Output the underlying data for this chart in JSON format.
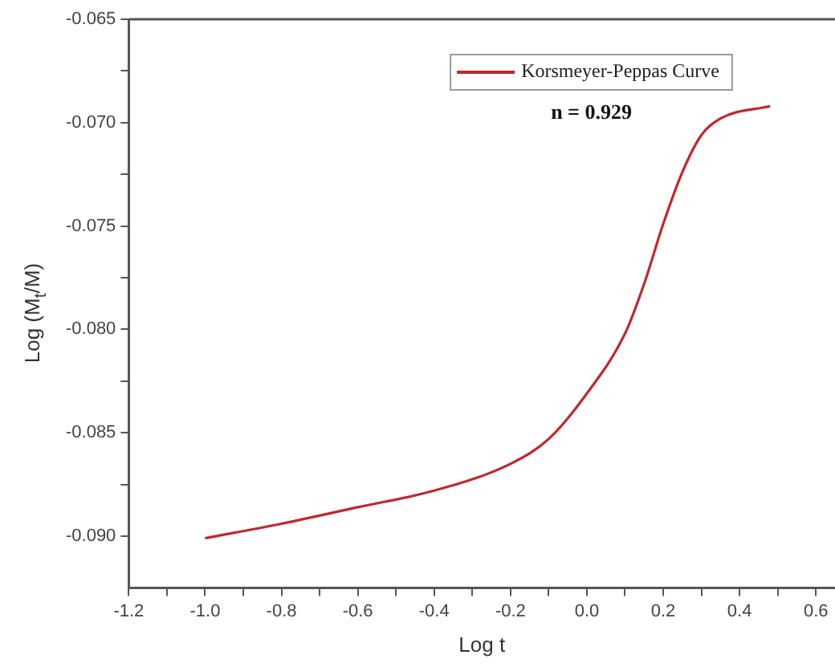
{
  "chart_data": {
    "type": "line",
    "xlabel": "Log t",
    "ylabel": "Log (M$_{t}$/M)",
    "legend": "top",
    "line_style": "solid",
    "marker": "none",
    "grid": false,
    "annotations": [
      "n = 0.929"
    ],
    "xlim": [
      -1.2,
      0.65
    ],
    "ylim": [
      -0.0925,
      -0.065
    ],
    "xticks": [
      {
        "value": -1.2,
        "label": "-1.2"
      },
      {
        "value": -1.1,
        "label": null
      },
      {
        "value": -1.0,
        "label": "-1.0"
      },
      {
        "value": -0.9,
        "label": null
      },
      {
        "value": -0.8,
        "label": "-0.8"
      },
      {
        "value": -0.7,
        "label": null
      },
      {
        "value": -0.6,
        "label": "-0.6"
      },
      {
        "value": -0.5,
        "label": null
      },
      {
        "value": -0.4,
        "label": "-0.4"
      },
      {
        "value": -0.3,
        "label": null
      },
      {
        "value": -0.2,
        "label": "-0.2"
      },
      {
        "value": -0.1,
        "label": null
      },
      {
        "value": 0,
        "label": "0.0"
      },
      {
        "value": 0.1,
        "label": null
      },
      {
        "value": 0.2,
        "label": "0.2"
      },
      {
        "value": 0.3,
        "label": null
      },
      {
        "value": 0.4,
        "label": "0.4"
      },
      {
        "value": 0.5,
        "label": null
      },
      {
        "value": 0.6,
        "label": "0.6"
      }
    ],
    "yticks": [
      {
        "value": -0.09,
        "label": "-0.090"
      },
      {
        "value": -0.0875,
        "label": null
      },
      {
        "value": -0.085,
        "label": "-0.085"
      },
      {
        "value": -0.0825,
        "label": null
      },
      {
        "value": -0.08,
        "label": "-0.080"
      },
      {
        "value": -0.0775,
        "label": null
      },
      {
        "value": -0.075,
        "label": "-0.075"
      },
      {
        "value": -0.0725,
        "label": null
      },
      {
        "value": -0.07,
        "label": "-0.070"
      },
      {
        "value": -0.0675,
        "label": null
      },
      {
        "value": -0.065,
        "label": "-0.065"
      }
    ],
    "series": [
      {
        "name": "Korsmeyer-Peppas Curve",
        "color": "#c0282d",
        "x": [
          -1.0,
          -0.8,
          -0.6,
          -0.4,
          -0.2,
          -0.1,
          0.0,
          0.1,
          0.15,
          0.2,
          0.25,
          0.3,
          0.35,
          0.48
        ],
        "values": [
          -0.0901,
          -0.0894,
          -0.0886,
          -0.0878,
          -0.0865,
          -0.0853,
          -0.0831,
          -0.0802,
          -0.0778,
          -0.0749,
          -0.0724,
          -0.0706,
          -0.0698,
          -0.0692
        ]
      }
    ]
  }
}
